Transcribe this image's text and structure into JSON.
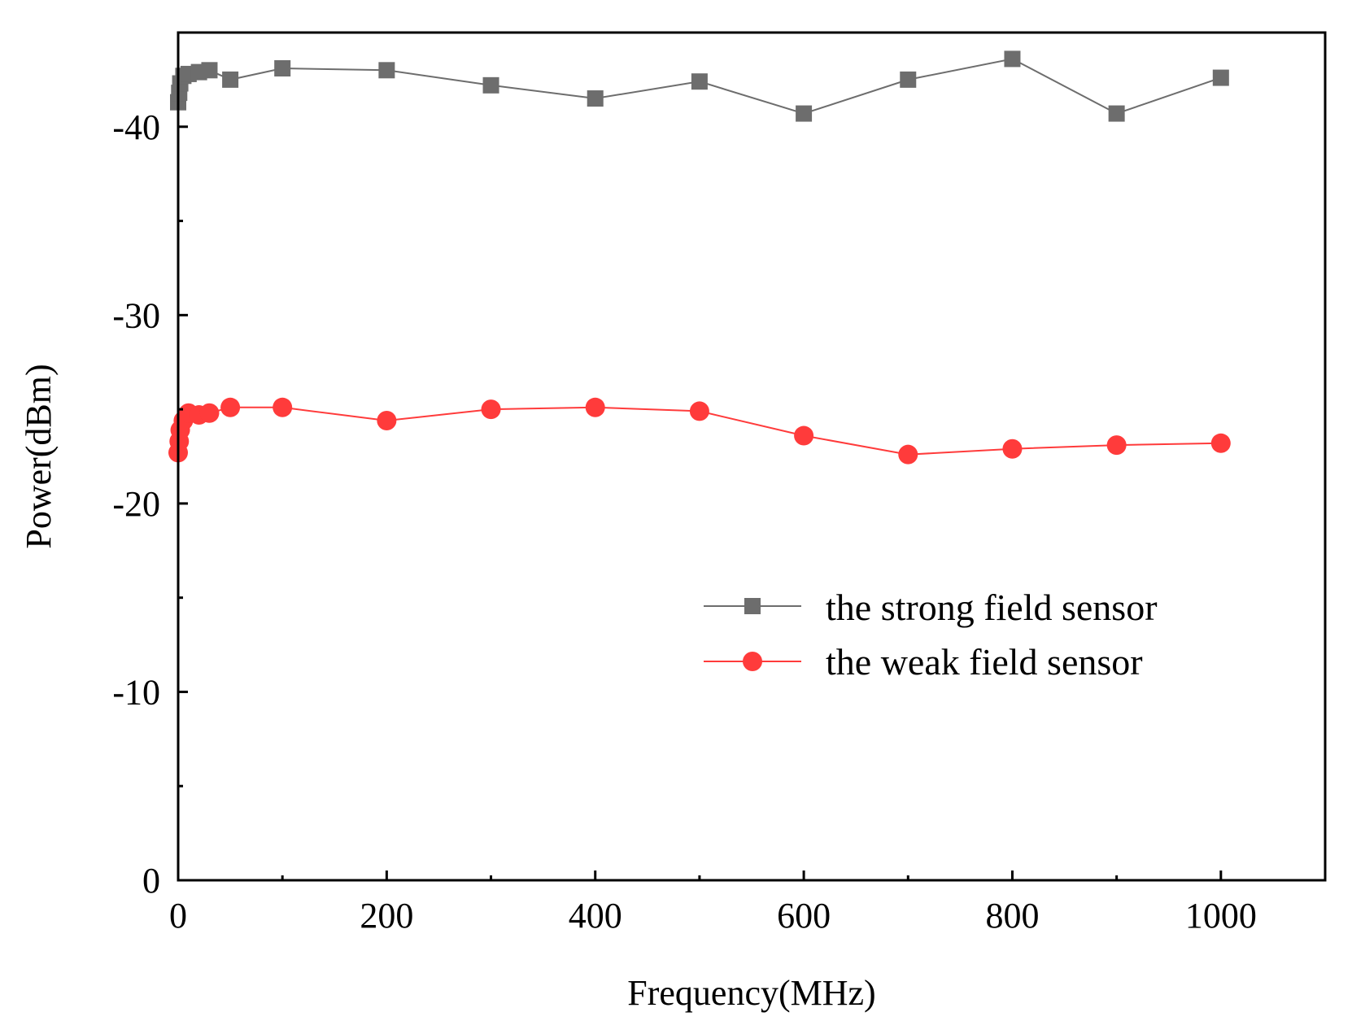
{
  "chart_data": {
    "type": "line",
    "xlabel": "Frequency(MHz)",
    "ylabel": "Power(dBm)",
    "xlim": [
      0,
      1100
    ],
    "ylim": [
      0,
      -45
    ],
    "xticks": [
      0,
      200,
      400,
      600,
      800,
      1000
    ],
    "yticks": [
      0,
      -10,
      -20,
      -30,
      -40
    ],
    "xtick_labels": [
      "0",
      "200",
      "400",
      "600",
      "800",
      "1000"
    ],
    "ytick_labels": [
      "0",
      "-10",
      "-20",
      "-30",
      "-40"
    ],
    "legend_position": "right-middle",
    "grid": false,
    "series": [
      {
        "name": "the strong field sensor",
        "color": "#6d6d6d",
        "marker": "square",
        "x": [
          0,
          1,
          2,
          5,
          10,
          20,
          30,
          50,
          100,
          200,
          300,
          400,
          500,
          600,
          700,
          800,
          900,
          1000
        ],
        "y": [
          -41.3,
          -41.8,
          -42.3,
          -42.7,
          -42.8,
          -42.9,
          -43.0,
          -42.5,
          -43.1,
          -43.0,
          -42.2,
          -41.5,
          -42.4,
          -40.7,
          -42.5,
          -43.6,
          -40.7,
          -42.6
        ]
      },
      {
        "name": "the weak field sensor",
        "color": "#ff3b3b",
        "marker": "circle",
        "x": [
          0,
          1,
          2,
          5,
          10,
          20,
          30,
          50,
          100,
          200,
          300,
          400,
          500,
          600,
          700,
          800,
          900,
          1000
        ],
        "y": [
          -22.7,
          -23.3,
          -23.9,
          -24.4,
          -24.8,
          -24.7,
          -24.8,
          -25.1,
          -25.1,
          -24.4,
          -25.0,
          -25.1,
          -24.9,
          -23.6,
          -22.6,
          -22.9,
          -23.1,
          -23.2
        ]
      }
    ]
  }
}
